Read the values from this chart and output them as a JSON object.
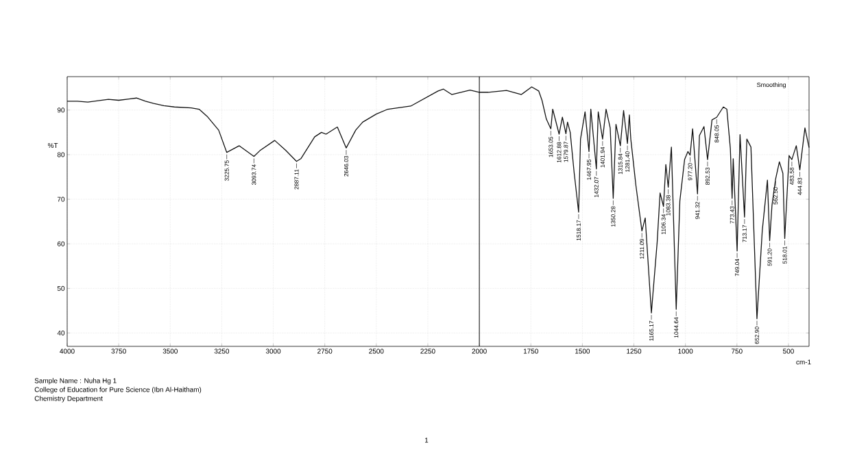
{
  "chart_data": {
    "type": "line",
    "xlabel": "cm-1",
    "ylabel": "%T",
    "xlim": [
      4000,
      400
    ],
    "ylim": [
      37,
      97.5
    ],
    "xticks": [
      4000,
      3750,
      3500,
      3250,
      3000,
      2750,
      2500,
      2250,
      2000,
      1750,
      1500,
      1250,
      1000,
      750,
      500
    ],
    "yticks": [
      40,
      50,
      60,
      70,
      80,
      90
    ],
    "grid": true,
    "ref_lines": [
      {
        "axis": "x",
        "value": 2000,
        "color": "#000000"
      }
    ],
    "series": [
      {
        "color": "#111111",
        "x": [
          4000,
          3950,
          3900,
          3850,
          3800,
          3750,
          3700,
          3664,
          3620,
          3580,
          3531,
          3480,
          3398,
          3360,
          3321,
          3265,
          3225.75,
          3165,
          3093.74,
          3065,
          2993,
          2940,
          2887.11,
          2866,
          2799,
          2766,
          2744,
          2689,
          2646.03,
          2600,
          2566,
          2500,
          2444,
          2333,
          2200,
          2174,
          2134,
          2045,
          2000,
          1957,
          1868,
          1796,
          1746,
          1712,
          1696,
          1675,
          1653.05,
          1644,
          1612.88,
          1597,
          1579.87,
          1572,
          1559,
          1540,
          1518.17,
          1509,
          1487,
          1467.95,
          1459,
          1432.07,
          1423,
          1401.94,
          1385,
          1365,
          1350.28,
          1337,
          1315.84,
          1300,
          1281.4,
          1272,
          1265,
          1240,
          1211.09,
          1195,
          1165.17,
          1137,
          1123,
          1106.34,
          1095,
          1083.38,
          1068,
          1044.64,
          1027,
          1004,
          988,
          977.2,
          965,
          941.32,
          932,
          910,
          892.53,
          871,
          848.05,
          816,
          799,
          782,
          773.43,
          768,
          749.04,
          735,
          713.17,
          702,
          682,
          652.9,
          627,
          602,
          591.2,
          580,
          562.5,
          544,
          527,
          518.01,
          497,
          483.58,
          462,
          444.83,
          420,
          400
        ],
        "values": [
          92.0,
          92.0,
          91.8,
          92.1,
          92.4,
          92.2,
          92.5,
          92.7,
          92.0,
          91.5,
          91.0,
          90.7,
          90.5,
          90.2,
          88.6,
          85.5,
          80.5,
          82.0,
          79.6,
          80.9,
          83.2,
          81.0,
          78.5,
          79.1,
          84.0,
          85.0,
          84.6,
          86.2,
          81.5,
          85.5,
          87.3,
          89.1,
          90.2,
          90.9,
          94.3,
          94.7,
          93.5,
          94.5,
          94.0,
          94.0,
          94.4,
          93.5,
          95.2,
          94.3,
          92.2,
          88.0,
          85.8,
          90.2,
          84.6,
          88.4,
          84.7,
          87.3,
          85.0,
          76.0,
          67.1,
          83.5,
          89.6,
          80.7,
          90.2,
          76.8,
          89.6,
          83.5,
          90.2,
          86.0,
          70.2,
          86.8,
          82.0,
          89.9,
          82.5,
          88.9,
          83.5,
          73.0,
          62.9,
          65.8,
          44.5,
          60.4,
          71.4,
          68.4,
          77.8,
          72.7,
          81.7,
          45.3,
          69.6,
          78.9,
          80.7,
          79.9,
          85.8,
          71.2,
          84.3,
          86.3,
          78.9,
          87.8,
          88.4,
          90.7,
          90.2,
          81.4,
          70.2,
          79.1,
          58.4,
          84.5,
          66.0,
          83.5,
          81.7,
          43.2,
          63.0,
          74.3,
          60.7,
          68.6,
          74.5,
          78.4,
          75.8,
          61.2,
          79.8,
          78.9,
          82.0,
          76.6,
          86.0,
          81.6
        ]
      }
    ],
    "annotations": [
      "Smoothing",
      "Sample Name : Nuha  Hg 1",
      "College of Education for Pure Science (Ibn Al-Haitham)",
      "Chemistry  Department",
      "1",
      {
        "text": "3225.75",
        "x": 3225.75,
        "y": 80.5
      },
      {
        "text": "3093.74",
        "x": 3093.74,
        "y": 79.6
      },
      {
        "text": "2887.11",
        "x": 2887.11,
        "y": 78.5
      },
      {
        "text": "2646.03",
        "x": 2646.03,
        "y": 81.5
      },
      {
        "text": "1653.05",
        "x": 1653.05,
        "y": 85.8
      },
      {
        "text": "1612.88",
        "x": 1612.88,
        "y": 84.6
      },
      {
        "text": "1579.87",
        "x": 1579.87,
        "y": 84.7
      },
      {
        "text": "1518.17",
        "x": 1518.17,
        "y": 67.1
      },
      {
        "text": "1467.95",
        "x": 1467.95,
        "y": 80.7
      },
      {
        "text": "1432.07",
        "x": 1432.07,
        "y": 76.8
      },
      {
        "text": "1401.94",
        "x": 1401.94,
        "y": 83.5
      },
      {
        "text": "1350.28",
        "x": 1350.28,
        "y": 70.2
      },
      {
        "text": "1315.84",
        "x": 1315.84,
        "y": 82.0
      },
      {
        "text": "1281.40",
        "x": 1281.4,
        "y": 82.5
      },
      {
        "text": "1211.09",
        "x": 1211.09,
        "y": 62.9
      },
      {
        "text": "1165.17",
        "x": 1165.17,
        "y": 44.5
      },
      {
        "text": "1106.34",
        "x": 1106.34,
        "y": 68.4
      },
      {
        "text": "1083.38",
        "x": 1083.38,
        "y": 72.7
      },
      {
        "text": "1044.64",
        "x": 1044.64,
        "y": 45.3
      },
      {
        "text": "977.20",
        "x": 977.2,
        "y": 79.9
      },
      {
        "text": "941.32",
        "x": 941.32,
        "y": 71.2
      },
      {
        "text": "892.53",
        "x": 892.53,
        "y": 78.9
      },
      {
        "text": "848.05",
        "x": 848.05,
        "y": 88.4
      },
      {
        "text": "773.43",
        "x": 773.43,
        "y": 70.2
      },
      {
        "text": "749.04",
        "x": 749.04,
        "y": 58.4
      },
      {
        "text": "713.17",
        "x": 713.17,
        "y": 66.0
      },
      {
        "text": "652.90",
        "x": 652.9,
        "y": 43.2
      },
      {
        "text": "591.20",
        "x": 591.2,
        "y": 60.7
      },
      {
        "text": "562.50",
        "x": 562.5,
        "y": 74.5
      },
      {
        "text": "518.01",
        "x": 518.01,
        "y": 61.2
      },
      {
        "text": "483.58",
        "x": 483.58,
        "y": 78.9
      },
      {
        "text": "444.83",
        "x": 444.83,
        "y": 76.6
      }
    ]
  }
}
